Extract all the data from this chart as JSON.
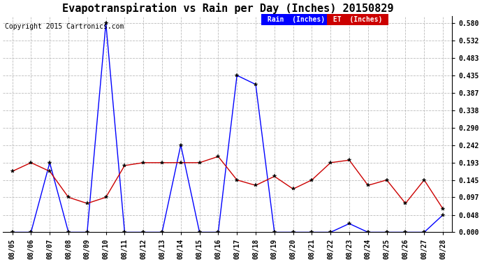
{
  "title": "Evapotranspiration vs Rain per Day (Inches) 20150829",
  "copyright": "Copyright 2015 Cartronics.com",
  "legend_rain": "Rain  (Inches)",
  "legend_et": "ET  (Inches)",
  "dates": [
    "08/05",
    "08/06",
    "08/07",
    "08/08",
    "08/09",
    "08/10",
    "08/11",
    "08/12",
    "08/13",
    "08/14",
    "08/15",
    "08/16",
    "08/17",
    "08/18",
    "08/19",
    "08/20",
    "08/21",
    "08/22",
    "08/23",
    "08/24",
    "08/25",
    "08/26",
    "08/27",
    "08/28"
  ],
  "rain": [
    0.0,
    0.0,
    0.193,
    0.0,
    0.0,
    0.58,
    0.0,
    0.0,
    0.0,
    0.242,
    0.0,
    0.0,
    0.435,
    0.41,
    0.0,
    0.0,
    0.0,
    0.0,
    0.024,
    0.0,
    0.0,
    0.0,
    0.0,
    0.048
  ],
  "et": [
    0.169,
    0.193,
    0.169,
    0.097,
    0.08,
    0.097,
    0.185,
    0.193,
    0.193,
    0.193,
    0.193,
    0.21,
    0.145,
    0.13,
    0.155,
    0.12,
    0.145,
    0.193,
    0.2,
    0.13,
    0.145,
    0.08,
    0.145,
    0.065
  ],
  "rain_color": "#0000ff",
  "et_color": "#cc0000",
  "bg_color": "#ffffff",
  "plot_bg_color": "#ffffff",
  "grid_color": "#bbbbbb",
  "ylim_min": 0.0,
  "ylim_max": 0.6,
  "yticks": [
    0.0,
    0.048,
    0.097,
    0.145,
    0.193,
    0.242,
    0.29,
    0.338,
    0.387,
    0.435,
    0.483,
    0.532,
    0.58
  ],
  "title_fontsize": 11,
  "copyright_fontsize": 7,
  "tick_fontsize": 7,
  "legend_fontsize": 7
}
